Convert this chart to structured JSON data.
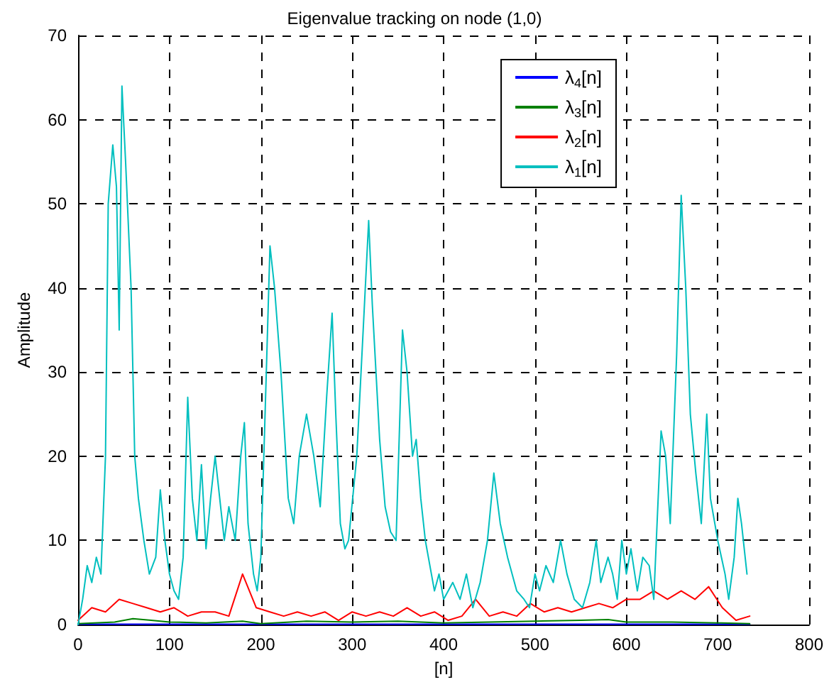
{
  "chart_data": {
    "type": "line",
    "title": "Eigenvalue tracking on node (1,0)",
    "xlabel": "[n]",
    "ylabel": "Amplitude",
    "xlim": [
      0,
      800
    ],
    "xticks": [
      0,
      100,
      200,
      300,
      400,
      500,
      600,
      700,
      800
    ],
    "ylim": [
      0,
      70
    ],
    "yticks": [
      0,
      10,
      20,
      30,
      40,
      50,
      60,
      70
    ],
    "grid": true,
    "legend": "top right",
    "marker": "none",
    "line_style": "solid",
    "series": [
      {
        "name": "λ$_{4}$[n]",
        "color": "#0000ff",
        "x": [
          0,
          100,
          200,
          300,
          400,
          500,
          600,
          700,
          735
        ],
        "values": [
          0.05,
          0.05,
          0.05,
          0.05,
          0.05,
          0.05,
          0.05,
          0.05,
          0.05
        ]
      },
      {
        "name": "λ$_{3}$[n]",
        "color": "#008000",
        "x": [
          0,
          40,
          60,
          80,
          100,
          140,
          180,
          200,
          250,
          300,
          350,
          400,
          450,
          500,
          550,
          580,
          600,
          650,
          700,
          735
        ],
        "values": [
          0.1,
          0.3,
          0.7,
          0.5,
          0.3,
          0.2,
          0.4,
          0.1,
          0.4,
          0.3,
          0.4,
          0.2,
          0.3,
          0.4,
          0.5,
          0.6,
          0.3,
          0.3,
          0.2,
          0.1
        ]
      },
      {
        "name": "λ$_{2}$[n]",
        "color": "#ff0000",
        "x": [
          0,
          15,
          30,
          45,
          60,
          75,
          90,
          105,
          120,
          135,
          150,
          165,
          180,
          195,
          210,
          225,
          240,
          255,
          270,
          285,
          300,
          315,
          330,
          345,
          360,
          375,
          390,
          405,
          420,
          435,
          450,
          465,
          480,
          495,
          510,
          525,
          540,
          555,
          570,
          585,
          600,
          615,
          630,
          645,
          660,
          675,
          690,
          705,
          720,
          735
        ],
        "values": [
          0.5,
          2,
          1.5,
          3,
          2.5,
          2,
          1.5,
          2,
          1,
          1.5,
          1.5,
          1,
          6,
          2,
          1.5,
          1,
          1.5,
          1,
          1.5,
          0.5,
          1.5,
          1,
          1.5,
          1,
          2,
          1,
          1.5,
          0.5,
          1,
          3,
          1,
          1.5,
          1,
          2.5,
          1.5,
          2,
          1.5,
          2,
          2.5,
          2,
          3,
          3,
          4,
          3,
          4,
          3,
          4.5,
          2,
          0.5,
          1
        ]
      },
      {
        "name": "λ$_{1}$[n]",
        "color": "#00bfbf",
        "x": [
          0,
          5,
          10,
          15,
          20,
          25,
          30,
          33,
          38,
          42,
          45,
          48,
          52,
          58,
          62,
          66,
          72,
          78,
          85,
          90,
          95,
          100,
          105,
          110,
          115,
          120,
          125,
          130,
          135,
          140,
          145,
          150,
          155,
          160,
          165,
          172,
          178,
          182,
          186,
          192,
          196,
          200,
          206,
          210,
          215,
          222,
          230,
          236,
          242,
          250,
          258,
          265,
          272,
          278,
          282,
          287,
          292,
          296,
          305,
          312,
          318,
          322,
          330,
          336,
          342,
          348,
          355,
          360,
          366,
          370,
          375,
          380,
          390,
          395,
          400,
          410,
          418,
          425,
          432,
          440,
          448,
          455,
          462,
          470,
          480,
          488,
          494,
          500,
          505,
          512,
          520,
          528,
          535,
          543,
          552,
          560,
          567,
          572,
          580,
          585,
          590,
          595,
          600,
          605,
          612,
          618,
          625,
          630,
          638,
          643,
          648,
          655,
          660,
          665,
          670,
          676,
          682,
          688,
          692,
          700,
          708,
          712,
          718,
          722,
          726,
          732
        ],
        "values": [
          0,
          3,
          7,
          5,
          8,
          6,
          20,
          50,
          57,
          52,
          35,
          64,
          55,
          40,
          20,
          15,
          10,
          6,
          8,
          16,
          10,
          6,
          4,
          3,
          8,
          27,
          15,
          10,
          19,
          9,
          15,
          20,
          15,
          10,
          14,
          10,
          20,
          24,
          12,
          6,
          4,
          8,
          30,
          45,
          40,
          30,
          15,
          12,
          20,
          25,
          20,
          14,
          27,
          37,
          25,
          12,
          9,
          10,
          20,
          35,
          48,
          38,
          22,
          14,
          11,
          10,
          35,
          30,
          20,
          22,
          15,
          10,
          4,
          6,
          3,
          5,
          3,
          6,
          2,
          5,
          10,
          18,
          12,
          8,
          4,
          3,
          2,
          6,
          4,
          7,
          5,
          10,
          6,
          3,
          2,
          5,
          10,
          5,
          8,
          6,
          3,
          10,
          6,
          9,
          4,
          8,
          7,
          3,
          23,
          20,
          12,
          32,
          51,
          40,
          25,
          18,
          12,
          25,
          15,
          10,
          6,
          3,
          8,
          15,
          12,
          6
        ]
      }
    ]
  }
}
